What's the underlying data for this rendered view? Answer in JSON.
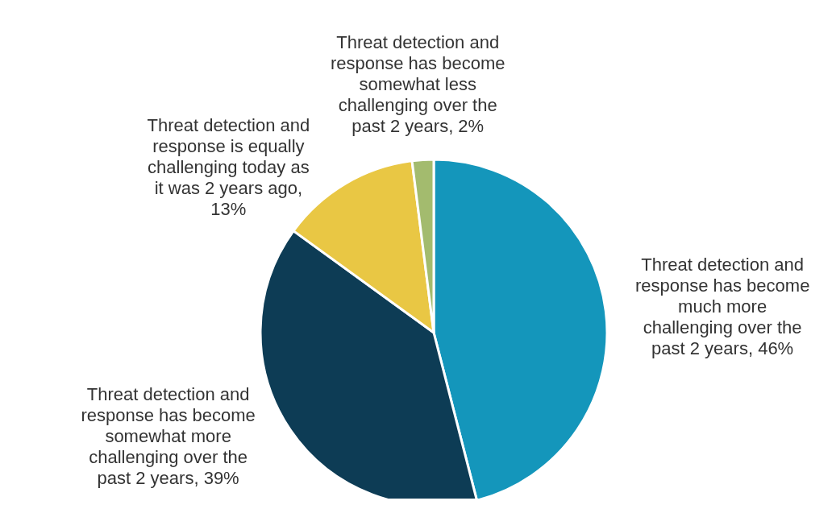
{
  "chart_data": {
    "type": "pie",
    "categories": [
      "Threat detection and response has become much more challenging over the past 2 years, 46%",
      "Threat detection and response has become somewhat more challenging over the past 2 years, 39%",
      "Threat detection and response is equally challenging today as it was 2 years ago, 13%",
      "Threat detection and response has become somewhat less challenging over the past 2 years, 2%"
    ],
    "values": [
      46,
      39,
      13,
      2
    ],
    "colors": [
      "#1496bb",
      "#0d3c55",
      "#e9c744",
      "#a3bb6e"
    ],
    "legend": false
  }
}
